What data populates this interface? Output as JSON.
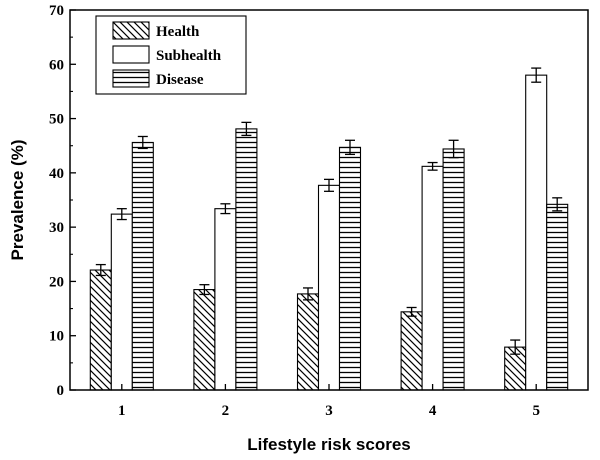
{
  "chart_data": {
    "type": "bar",
    "title": "",
    "xlabel": "Lifestyle risk scores",
    "ylabel": "Prevalence (%)",
    "categories": [
      "1",
      "2",
      "3",
      "4",
      "5"
    ],
    "ylim": [
      0,
      70
    ],
    "yticks": [
      "0",
      "10",
      "20",
      "30",
      "40",
      "50",
      "60",
      "70"
    ],
    "grid": false,
    "legend_position": "top-left",
    "series": [
      {
        "name": "Health",
        "pattern": "diagonal",
        "values": [
          22.1,
          18.5,
          17.7,
          14.4,
          7.9
        ],
        "errors": [
          1.0,
          0.9,
          1.1,
          0.8,
          1.3
        ]
      },
      {
        "name": "Subhealth",
        "pattern": "none",
        "values": [
          32.4,
          33.4,
          37.7,
          41.2,
          58.0
        ],
        "errors": [
          1.0,
          0.9,
          1.1,
          0.7,
          1.3
        ]
      },
      {
        "name": "Disease",
        "pattern": "horizontal",
        "values": [
          45.6,
          48.1,
          44.7,
          44.4,
          34.2
        ],
        "errors": [
          1.1,
          1.2,
          1.3,
          1.6,
          1.2
        ]
      }
    ],
    "colors": {
      "stroke": "#000000",
      "fill": "#ffffff"
    }
  }
}
